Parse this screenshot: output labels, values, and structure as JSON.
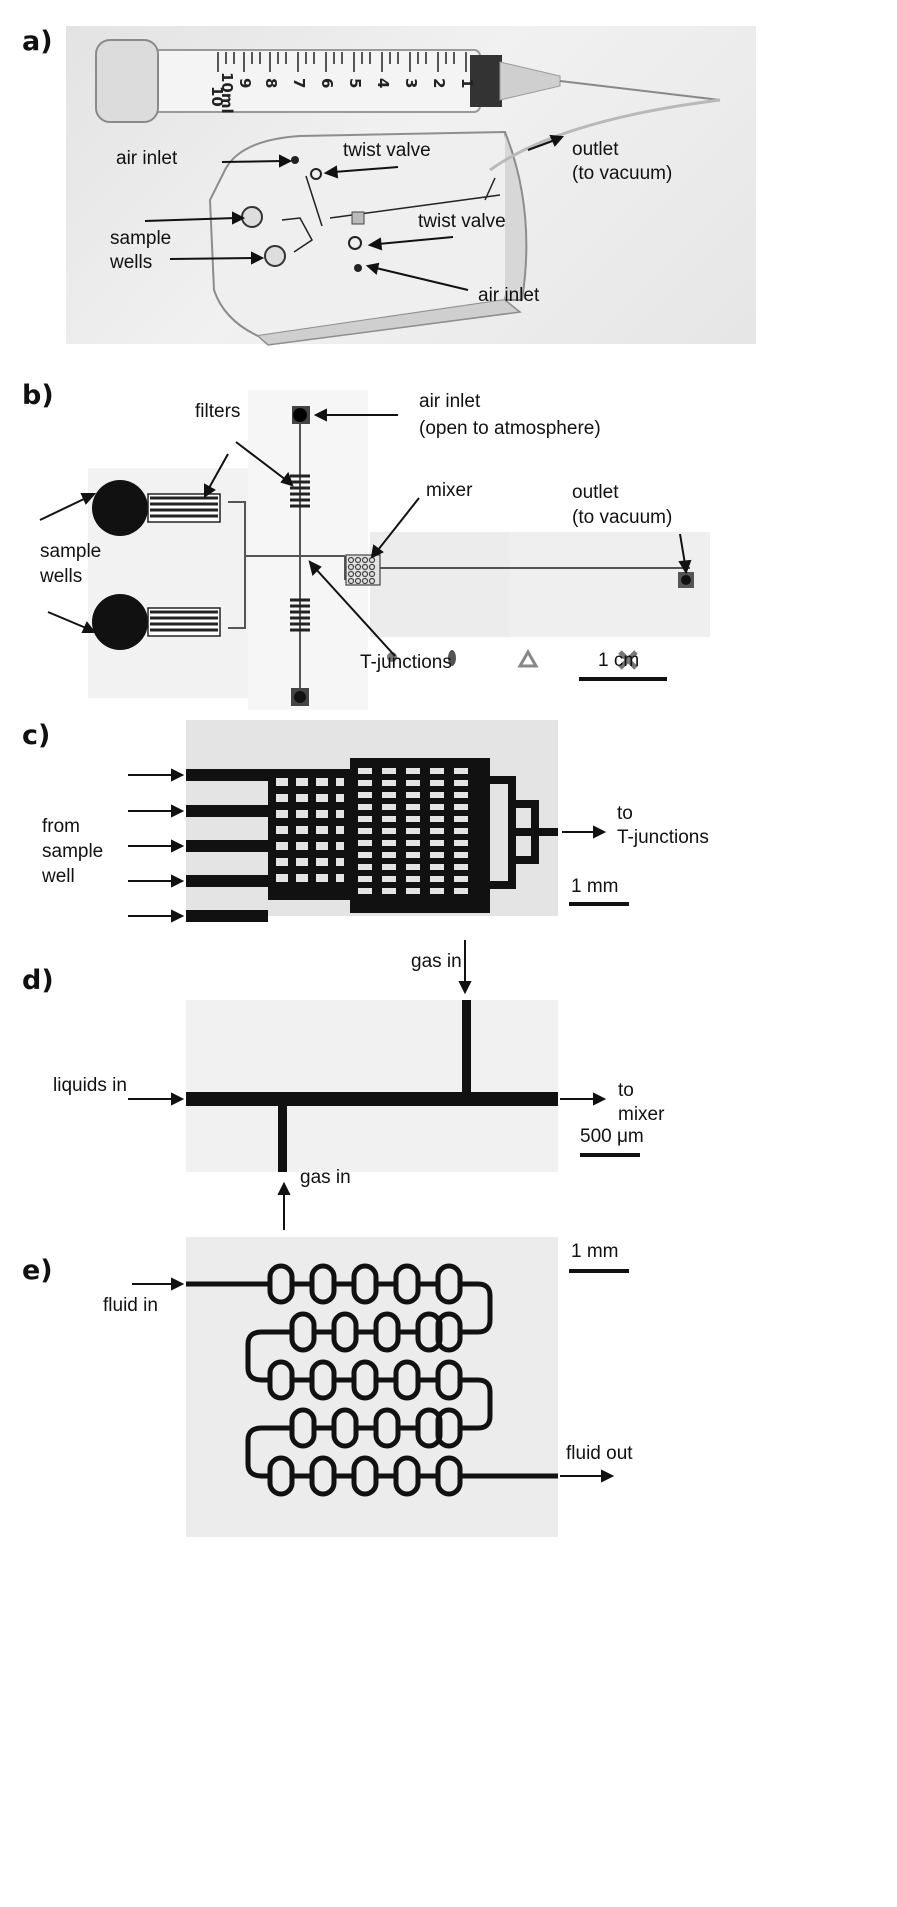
{
  "panels": {
    "a": {
      "label": "a)",
      "syringe_scale": "10ml",
      "syringe_ticks": [
        "10",
        "9",
        "8",
        "7",
        "6",
        "5",
        "4",
        "3",
        "2",
        "1"
      ],
      "labels": {
        "air_inlet_top": "air inlet",
        "twist_valve_top": "twist valve",
        "outlet_1": "outlet",
        "outlet_2": "(to vacuum)",
        "sample_1": "sample",
        "sample_2": "wells",
        "twist_valve_bottom": "twist valve",
        "air_inlet_bottom": "air inlet"
      }
    },
    "b": {
      "label": "b)",
      "labels": {
        "filters": "filters",
        "air_inlet_1": "air inlet",
        "air_inlet_2": "(open to atmosphere)",
        "mixer": "mixer",
        "outlet_1": "outlet",
        "outlet_2": "(to vacuum)",
        "sample_1": "sample",
        "sample_2": "wells",
        "tjunctions": "T-junctions",
        "scale": "1 cm"
      }
    },
    "c": {
      "label": "c)",
      "labels": {
        "from_1": "from",
        "from_2": "sample",
        "from_3": "well",
        "to_1": "to",
        "to_2": "T-junctions",
        "scale": "1 mm"
      }
    },
    "d": {
      "label": "d)",
      "labels": {
        "gas_in_top": "gas in",
        "liquids_in": "liquids in",
        "to_1": "to",
        "to_2": "mixer",
        "scale": "500 μm",
        "gas_in_bottom": "gas in"
      }
    },
    "e": {
      "label": "e)",
      "labels": {
        "fluid_in": "fluid in",
        "scale": "1 mm",
        "fluid_out": "fluid out"
      }
    }
  }
}
